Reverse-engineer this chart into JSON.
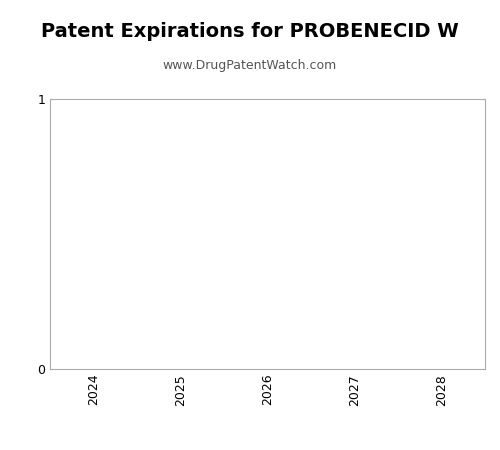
{
  "title": "Patent Expirations for PROBENECID W",
  "subtitle": "www.DrugPatentWatch.com",
  "xlim": [
    2023.5,
    2028.5
  ],
  "ylim": [
    0,
    1
  ],
  "xticks": [
    2024,
    2025,
    2026,
    2027,
    2028
  ],
  "yticks": [
    0,
    1
  ],
  "background_color": "#ffffff",
  "plot_bg_color": "#ffffff",
  "border_color": "#aaaaaa",
  "title_fontsize": 14,
  "subtitle_fontsize": 9,
  "tick_fontsize": 9,
  "title_color": "#000000",
  "subtitle_color": "#555555"
}
